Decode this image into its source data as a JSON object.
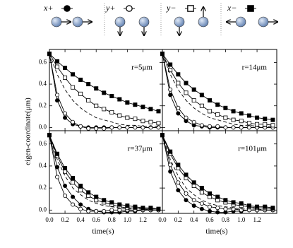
{
  "chart_data": [
    {
      "type": "line",
      "label": "r=5μm",
      "ylabel": "eigen-coordinate(μm)",
      "x": [
        0,
        0.1,
        0.2,
        0.3,
        0.4,
        0.5,
        0.6,
        0.7,
        0.8,
        0.9,
        1.0,
        1.1,
        1.2,
        1.3,
        1.4
      ],
      "xlim": [
        0,
        1.45
      ],
      "ylim": [
        -0.03,
        0.72
      ],
      "yticks": [
        {
          "value": 0,
          "label": "0.0"
        },
        0.2,
        0.4,
        0.6
      ],
      "series": [
        {
          "name": "x+",
          "marker": "filled-circle",
          "color": "#000",
          "values": [
            0.68,
            0.25,
            0.09,
            0.03,
            0.01,
            0,
            0,
            0,
            0,
            0,
            0,
            0,
            0,
            0,
            0
          ]
        },
        {
          "name": "y+",
          "marker": "open-circle",
          "color": "#000",
          "values": [
            0.68,
            0.3,
            0.13,
            0.05,
            0.01,
            -0.01,
            -0.01,
            -0.01,
            0,
            0,
            0,
            0,
            0,
            0,
            0
          ]
        },
        {
          "name": "y−",
          "marker": "open-square",
          "color": "#000",
          "values": [
            0.68,
            0.56,
            0.46,
            0.37,
            0.31,
            0.25,
            0.2,
            0.17,
            0.14,
            0.11,
            0.09,
            0.08,
            0.06,
            0.05,
            0.04
          ]
        },
        {
          "name": "x−",
          "marker": "filled-square",
          "color": "#000",
          "values": [
            0.68,
            0.61,
            0.55,
            0.49,
            0.44,
            0.4,
            0.36,
            0.32,
            0.29,
            0.26,
            0.23,
            0.21,
            0.19,
            0.17,
            0.15
          ]
        },
        {
          "dash": true,
          "color": "#000",
          "values": [
            0.68,
            0.49,
            0.35,
            0.25,
            0.18,
            0.13,
            0.09,
            0.07,
            0.05,
            0.03,
            0.02,
            0.02,
            0.01,
            0.01,
            0.01
          ]
        }
      ]
    },
    {
      "type": "line",
      "label": "r=14μm",
      "x": [
        0,
        0.1,
        0.2,
        0.3,
        0.4,
        0.5,
        0.6,
        0.7,
        0.8,
        0.9,
        1.0,
        1.1,
        1.2,
        1.3,
        1.4
      ],
      "xlim": [
        0,
        1.45
      ],
      "ylim": [
        -0.03,
        0.72
      ],
      "series": [
        {
          "name": "x+",
          "marker": "filled-circle",
          "color": "#000",
          "values": [
            0.68,
            0.3,
            0.13,
            0.06,
            0.02,
            0.01,
            0,
            0,
            0,
            0,
            0,
            0,
            0,
            0,
            0
          ]
        },
        {
          "name": "y+",
          "marker": "open-circle",
          "color": "#000",
          "values": [
            0.68,
            0.35,
            0.18,
            0.09,
            0.05,
            0.02,
            0.01,
            0.01,
            0,
            0,
            0,
            0,
            0,
            0,
            0
          ]
        },
        {
          "name": "y−",
          "marker": "open-square",
          "color": "#000",
          "values": [
            0.68,
            0.53,
            0.41,
            0.32,
            0.25,
            0.2,
            0.15,
            0.12,
            0.09,
            0.07,
            0.06,
            0.04,
            0.03,
            0.03,
            0.02
          ]
        },
        {
          "name": "x−",
          "marker": "filled-square",
          "color": "#000",
          "values": [
            0.68,
            0.58,
            0.49,
            0.41,
            0.35,
            0.3,
            0.25,
            0.21,
            0.18,
            0.15,
            0.13,
            0.11,
            0.09,
            0.08,
            0.07
          ]
        },
        {
          "dash": true,
          "color": "#000",
          "values": [
            0.68,
            0.49,
            0.35,
            0.25,
            0.18,
            0.13,
            0.09,
            0.07,
            0.05,
            0.03,
            0.02,
            0.02,
            0.01,
            0.01,
            0.01
          ]
        }
      ]
    },
    {
      "type": "line",
      "label": "r=37μm",
      "xlabel": "time(s)",
      "x": [
        0,
        0.1,
        0.2,
        0.3,
        0.4,
        0.5,
        0.6,
        0.7,
        0.8,
        0.9,
        1.0,
        1.1,
        1.2,
        1.3,
        1.4
      ],
      "xlim": [
        0,
        1.45
      ],
      "ylim": [
        -0.03,
        0.72
      ],
      "xticks": [
        {
          "value": 0,
          "label": "0.0"
        },
        0.2,
        0.4,
        0.6,
        0.8,
        {
          "value": 1,
          "label": "1.0"
        },
        1.2
      ],
      "yticks": [
        {
          "value": 0,
          "label": "0.0"
        },
        0.2,
        0.4,
        0.6
      ],
      "series": [
        {
          "name": "x+",
          "marker": "filled-circle",
          "color": "#000",
          "values": [
            0.68,
            0.39,
            0.22,
            0.12,
            0.05,
            0.01,
            -0.01,
            -0.02,
            -0.02,
            -0.02,
            -0.01,
            -0.01,
            0,
            0,
            0
          ]
        },
        {
          "name": "y+",
          "marker": "open-circle",
          "color": "#000",
          "values": [
            0.68,
            0.3,
            0.13,
            0.05,
            0.01,
            -0.01,
            -0.01,
            -0.01,
            0,
            0,
            0,
            0,
            0,
            0,
            0
          ]
        },
        {
          "name": "y−",
          "marker": "open-square",
          "color": "#000",
          "values": [
            0.68,
            0.49,
            0.35,
            0.25,
            0.18,
            0.13,
            0.09,
            0.07,
            0.05,
            0.03,
            0.02,
            0.02,
            0.01,
            0.01,
            0.01
          ]
        },
        {
          "name": "x−",
          "marker": "filled-square",
          "color": "#000",
          "values": [
            0.68,
            0.51,
            0.38,
            0.29,
            0.22,
            0.16,
            0.12,
            0.09,
            0.07,
            0.05,
            0.04,
            0.03,
            0.02,
            0.02,
            0.01
          ]
        },
        {
          "dash": true,
          "color": "#000",
          "values": [
            0.68,
            0.46,
            0.31,
            0.2,
            0.14,
            0.09,
            0.06,
            0.04,
            0.03,
            0.02,
            0.01,
            0.01,
            0.01,
            0,
            0
          ]
        }
      ]
    },
    {
      "type": "line",
      "label": "r=101μm",
      "xlabel": "time(s)",
      "x": [
        0,
        0.1,
        0.2,
        0.3,
        0.4,
        0.5,
        0.6,
        0.7,
        0.8,
        0.9,
        1.0,
        1.1,
        1.2,
        1.3,
        1.4
      ],
      "xlim": [
        0,
        1.45
      ],
      "ylim": [
        -0.03,
        0.72
      ],
      "xticks": [
        {
          "value": 0,
          "label": "0.0"
        },
        0.2,
        0.4,
        0.6,
        0.8,
        {
          "value": 1,
          "label": "1.0"
        },
        1.2
      ],
      "series": [
        {
          "name": "x+",
          "marker": "filled-circle",
          "color": "#000",
          "values": [
            0.68,
            0.35,
            0.18,
            0.09,
            0.04,
            0.01,
            -0.01,
            -0.02,
            -0.02,
            -0.01,
            -0.01,
            0,
            0,
            0,
            0
          ]
        },
        {
          "name": "y+",
          "marker": "open-circle",
          "color": "#000",
          "values": [
            0.68,
            0.41,
            0.25,
            0.15,
            0.09,
            0.06,
            0.03,
            0.02,
            0.01,
            0.01,
            0,
            0,
            0,
            0,
            0
          ]
        },
        {
          "name": "y−",
          "marker": "open-square",
          "color": "#000",
          "values": [
            0.68,
            0.51,
            0.38,
            0.29,
            0.22,
            0.16,
            0.12,
            0.09,
            0.07,
            0.05,
            0.04,
            0.03,
            0.02,
            0.02,
            0.01
          ]
        },
        {
          "name": "x−",
          "marker": "filled-square",
          "color": "#000",
          "values": [
            0.68,
            0.53,
            0.41,
            0.32,
            0.25,
            0.2,
            0.15,
            0.12,
            0.09,
            0.07,
            0.06,
            0.04,
            0.03,
            0.03,
            0.02
          ]
        },
        {
          "dash": true,
          "color": "#000",
          "values": [
            0.68,
            0.46,
            0.31,
            0.2,
            0.14,
            0.09,
            0.06,
            0.04,
            0.03,
            0.02,
            0.01,
            0.01,
            0.01,
            0,
            0
          ]
        }
      ]
    }
  ]
}
